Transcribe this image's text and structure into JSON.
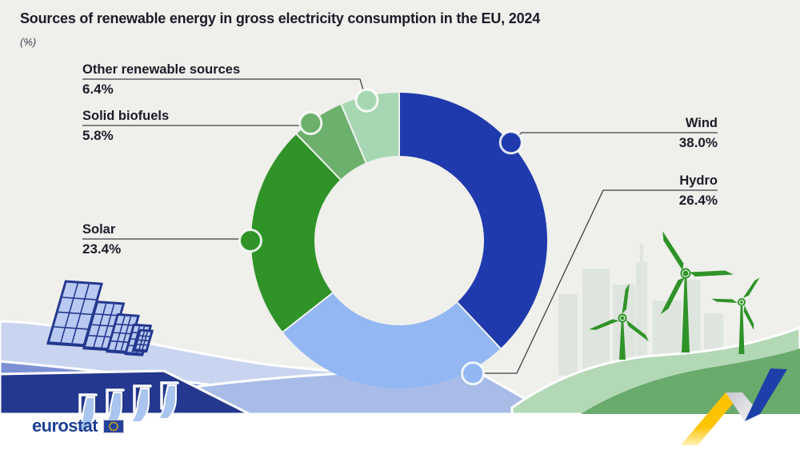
{
  "title": "Sources of renewable energy in gross electricity consumption in the EU, 2024",
  "unit_note": "(%)",
  "chart_data": {
    "type": "pie",
    "subtype": "donut",
    "title": "Sources of renewable energy in gross electricity consumption in the EU, 2024",
    "unit": "%",
    "categories": [
      "Wind",
      "Hydro",
      "Solar",
      "Solid biofuels",
      "Other renewable sources"
    ],
    "values": [
      38.0,
      26.4,
      23.4,
      5.8,
      6.4
    ],
    "value_labels": [
      "38.0%",
      "26.4%",
      "23.4%",
      "5.8%",
      "6.4%"
    ],
    "colors": [
      "#1e3aac",
      "#92b7f2",
      "#2f9328",
      "#6cb06c",
      "#a6d7b2"
    ],
    "start_angle_deg": 0,
    "clockwise": true,
    "inner_radius_ratio": 0.573,
    "label_sides": [
      "right",
      "right",
      "left",
      "left",
      "left"
    ],
    "marker_angles_deg": [
      48.7,
      151,
      270,
      323,
      347
    ],
    "legend": "callout-labels"
  },
  "branding": {
    "logo_text": "eurostat"
  },
  "decor": {
    "left_illustration": "solar-panels-and-hydro-dam",
    "right_illustration": "wind-turbines-and-city-skyline",
    "corner_graphic": "eu-colors-zigzag-ribbon",
    "accent_yellow": "#fdc300",
    "accent_blue": "#1c3fa9"
  }
}
